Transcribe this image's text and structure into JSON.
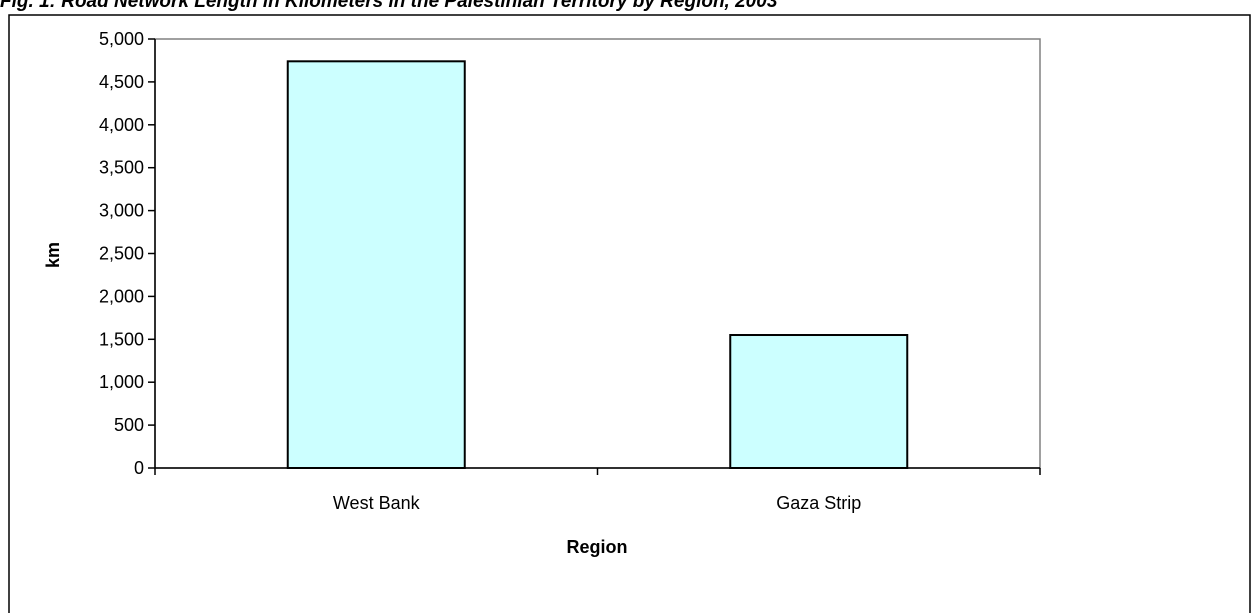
{
  "chart_data": {
    "type": "bar",
    "title": "Fig. 1: Road Network Length in Kilometers in the Palestinian Territory by Region, 2003",
    "xlabel": "Region",
    "ylabel": "km",
    "categories": [
      "West Bank",
      "Gaza Strip"
    ],
    "values": [
      4740,
      1550
    ],
    "ylim": [
      0,
      5000
    ],
    "yticks": [
      "0",
      "500",
      "1,000",
      "1,500",
      "2,000",
      "2,500",
      "3,000",
      "3,500",
      "4,000",
      "4,500",
      "5,000"
    ],
    "ytick_values": [
      0,
      500,
      1000,
      1500,
      2000,
      2500,
      3000,
      3500,
      4000,
      4500,
      5000
    ],
    "grid": false,
    "legend": "none",
    "colors": {
      "bar_fill": "#CCFFFF",
      "bar_stroke": "#000000",
      "axis": "#000000",
      "plot_border": "#808080",
      "frame": "#000000"
    }
  }
}
